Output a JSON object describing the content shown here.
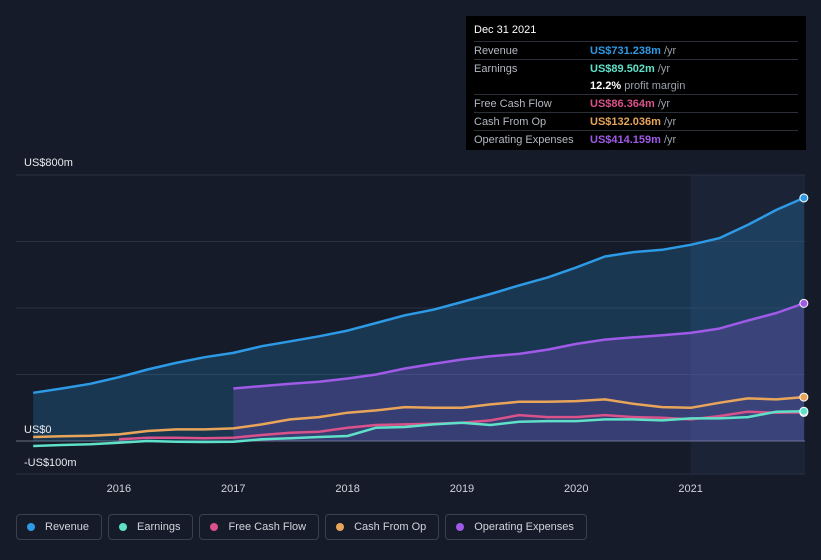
{
  "tooltip": {
    "date": "Dec 31 2021",
    "rows": [
      {
        "label": "Revenue",
        "value": "US$731.238m",
        "unit": "/yr",
        "color": "#2d9ae6"
      },
      {
        "label": "Earnings",
        "value": "US$89.502m",
        "unit": "/yr",
        "color": "#5fe0c8"
      },
      {
        "label": "",
        "value": "12.2%",
        "unit": "profit margin",
        "color": "#ffffff"
      },
      {
        "label": "Free Cash Flow",
        "value": "US$86.364m",
        "unit": "/yr",
        "color": "#d9528a"
      },
      {
        "label": "Cash From Op",
        "value": "US$132.036m",
        "unit": "/yr",
        "color": "#e8a55a"
      },
      {
        "label": "Operating Expenses",
        "value": "US$414.159m",
        "unit": "/yr",
        "color": "#a05ae8"
      }
    ]
  },
  "chart_data": {
    "type": "area",
    "ylim": [
      -100,
      800
    ],
    "y_axis_labels": [
      "US$800m",
      "US$0",
      "-US$100m"
    ],
    "y_axis_values": [
      800,
      0,
      -100
    ],
    "x_ticks": [
      "2016",
      "2017",
      "2018",
      "2019",
      "2020",
      "2021"
    ],
    "x_tick_values": [
      2016,
      2017,
      2018,
      2019,
      2020,
      2021
    ],
    "xlim": [
      2015.1,
      2022.0
    ],
    "highlight_start": 2021.0,
    "series": [
      {
        "name": "Revenue",
        "color": "#2d9ae6",
        "filled": true,
        "x": [
          2015.25,
          2015.5,
          2015.75,
          2016.0,
          2016.25,
          2016.5,
          2016.75,
          2017.0,
          2017.25,
          2017.5,
          2017.75,
          2018.0,
          2018.25,
          2018.5,
          2018.75,
          2019.0,
          2019.25,
          2019.5,
          2019.75,
          2020.0,
          2020.25,
          2020.5,
          2020.75,
          2021.0,
          2021.25,
          2021.5,
          2021.75,
          2021.99
        ],
        "values": [
          145,
          158,
          172,
          192,
          215,
          235,
          252,
          265,
          285,
          300,
          315,
          332,
          355,
          378,
          395,
          418,
          442,
          468,
          492,
          522,
          555,
          568,
          575,
          590,
          610,
          650,
          695,
          731
        ]
      },
      {
        "name": "Operating Expenses",
        "color": "#a05ae8",
        "filled": true,
        "x": [
          2017.0,
          2017.25,
          2017.5,
          2017.75,
          2018.0,
          2018.25,
          2018.5,
          2018.75,
          2019.0,
          2019.25,
          2019.5,
          2019.75,
          2020.0,
          2020.25,
          2020.5,
          2020.75,
          2021.0,
          2021.25,
          2021.5,
          2021.75,
          2021.99
        ],
        "values": [
          158,
          165,
          172,
          178,
          188,
          200,
          218,
          232,
          245,
          255,
          262,
          275,
          292,
          305,
          312,
          318,
          325,
          338,
          362,
          385,
          414
        ]
      },
      {
        "name": "Cash From Op",
        "color": "#e8a55a",
        "filled": false,
        "x": [
          2015.25,
          2015.5,
          2015.75,
          2016.0,
          2016.25,
          2016.5,
          2016.75,
          2017.0,
          2017.25,
          2017.5,
          2017.75,
          2018.0,
          2018.25,
          2018.5,
          2018.75,
          2019.0,
          2019.25,
          2019.5,
          2019.75,
          2020.0,
          2020.25,
          2020.5,
          2020.75,
          2021.0,
          2021.25,
          2021.5,
          2021.75,
          2021.99
        ],
        "values": [
          12,
          14,
          16,
          20,
          30,
          35,
          35,
          38,
          50,
          65,
          72,
          85,
          92,
          102,
          100,
          100,
          110,
          118,
          118,
          120,
          125,
          112,
          102,
          100,
          115,
          128,
          125,
          132
        ]
      },
      {
        "name": "Free Cash Flow",
        "color": "#d9528a",
        "filled": false,
        "x": [
          2016.0,
          2016.25,
          2016.5,
          2016.75,
          2017.0,
          2017.25,
          2017.5,
          2017.75,
          2018.0,
          2018.25,
          2018.5,
          2018.75,
          2019.0,
          2019.25,
          2019.5,
          2019.75,
          2020.0,
          2020.25,
          2020.5,
          2020.75,
          2021.0,
          2021.25,
          2021.5,
          2021.75,
          2021.99
        ],
        "values": [
          5,
          10,
          10,
          8,
          10,
          18,
          25,
          28,
          40,
          48,
          50,
          52,
          55,
          62,
          78,
          72,
          72,
          78,
          72,
          70,
          65,
          75,
          88,
          85,
          86
        ]
      },
      {
        "name": "Earnings",
        "color": "#5fe0c8",
        "filled": false,
        "x": [
          2015.25,
          2015.5,
          2015.75,
          2016.0,
          2016.25,
          2016.5,
          2016.75,
          2017.0,
          2017.25,
          2017.5,
          2017.75,
          2018.0,
          2018.25,
          2018.5,
          2018.75,
          2019.0,
          2019.25,
          2019.5,
          2019.75,
          2020.0,
          2020.25,
          2020.5,
          2020.75,
          2021.0,
          2021.25,
          2021.5,
          2021.75,
          2021.99
        ],
        "values": [
          -15,
          -12,
          -10,
          -5,
          0,
          -2,
          -3,
          -2,
          5,
          8,
          12,
          15,
          40,
          42,
          50,
          55,
          48,
          58,
          60,
          60,
          65,
          65,
          62,
          68,
          68,
          72,
          88,
          89.5
        ]
      }
    ]
  },
  "legend": [
    {
      "label": "Revenue",
      "color": "#2d9ae6"
    },
    {
      "label": "Earnings",
      "color": "#5fe0c8"
    },
    {
      "label": "Free Cash Flow",
      "color": "#d9528a"
    },
    {
      "label": "Cash From Op",
      "color": "#e8a55a"
    },
    {
      "label": "Operating Expenses",
      "color": "#a05ae8"
    }
  ]
}
